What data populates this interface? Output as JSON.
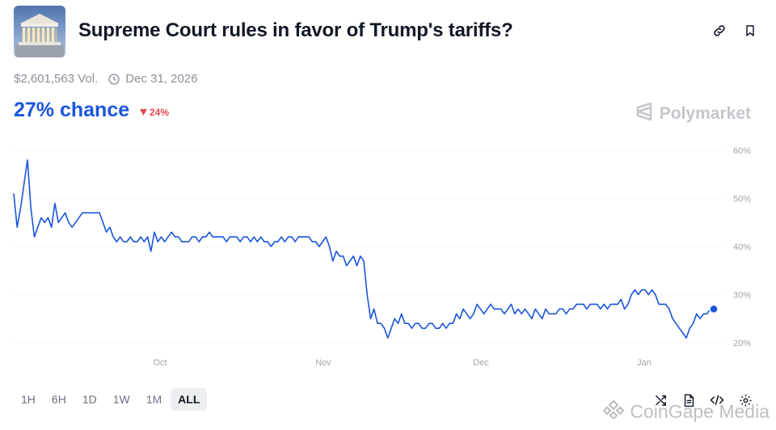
{
  "market": {
    "title": "Supreme Court rules in favor of Trump's tariffs?",
    "volume": "$2,601,563 Vol.",
    "end_date": "Dec 31, 2026",
    "chance": "27% chance",
    "change": "24%",
    "brand": "Polymarket",
    "accent_color": "#1a56db",
    "down_color": "#e5484d"
  },
  "ranges": [
    "1H",
    "6H",
    "1D",
    "1W",
    "1M",
    "ALL"
  ],
  "active_range": "ALL",
  "watermark": "CoinGape Media",
  "icons": {
    "top": [
      "link-icon",
      "bookmark-icon"
    ],
    "bottom": [
      "shuffle-icon",
      "document-icon",
      "code-icon",
      "gear-icon"
    ]
  },
  "chart_data": {
    "type": "line",
    "x_tick_labels": [
      "Oct",
      "Nov",
      "Dec",
      "Jan"
    ],
    "y_tick_labels": [
      "60%",
      "50%",
      "40%",
      "30%",
      "20%"
    ],
    "y_ticks": [
      60,
      50,
      40,
      30,
      20
    ],
    "ylim": [
      18,
      62
    ],
    "grid": "horizontal dotted",
    "line_color": "#1a56db",
    "series": [
      {
        "values": [
          51,
          44,
          48,
          53,
          58,
          48,
          42,
          44,
          46,
          45,
          46,
          44,
          49,
          45,
          46,
          47,
          45,
          44,
          45,
          46,
          47,
          47,
          47,
          47,
          47,
          47,
          45,
          43,
          44,
          42,
          41,
          42,
          41,
          41,
          42,
          41,
          41,
          42,
          41,
          42,
          39,
          43,
          41,
          42,
          41,
          42,
          43,
          42,
          42,
          41,
          41,
          41,
          42,
          42,
          41,
          42,
          42,
          43,
          42,
          42,
          42,
          42,
          41,
          42,
          42,
          42,
          41,
          42,
          42,
          41,
          42,
          41,
          42,
          41,
          41,
          40,
          41,
          41,
          42,
          41,
          42,
          42,
          41,
          42,
          42,
          42,
          42,
          41,
          41,
          40,
          41,
          42,
          40,
          37,
          39,
          38,
          38,
          36,
          37,
          38,
          36,
          38,
          37,
          30,
          25,
          27,
          24,
          24,
          23,
          21,
          23,
          25,
          24,
          26,
          24,
          24,
          23,
          24,
          24,
          23,
          23,
          24,
          24,
          23,
          23,
          24,
          23,
          24,
          24,
          26,
          25,
          27,
          26,
          25,
          26,
          28,
          27,
          26,
          27,
          28,
          27,
          27,
          27,
          26,
          27,
          28,
          26,
          27,
          26,
          27,
          26,
          25,
          27,
          26,
          25,
          27,
          26,
          26,
          26,
          27,
          27,
          26,
          27,
          27,
          28,
          28,
          28,
          27,
          28,
          28,
          28,
          27,
          28,
          27,
          28,
          28,
          28,
          29,
          27,
          28,
          30,
          31,
          30,
          31,
          31,
          30,
          31,
          30,
          28,
          28,
          28,
          27,
          25,
          24,
          23,
          22,
          21,
          23,
          24,
          26,
          25,
          26,
          26,
          27,
          27
        ]
      }
    ]
  }
}
